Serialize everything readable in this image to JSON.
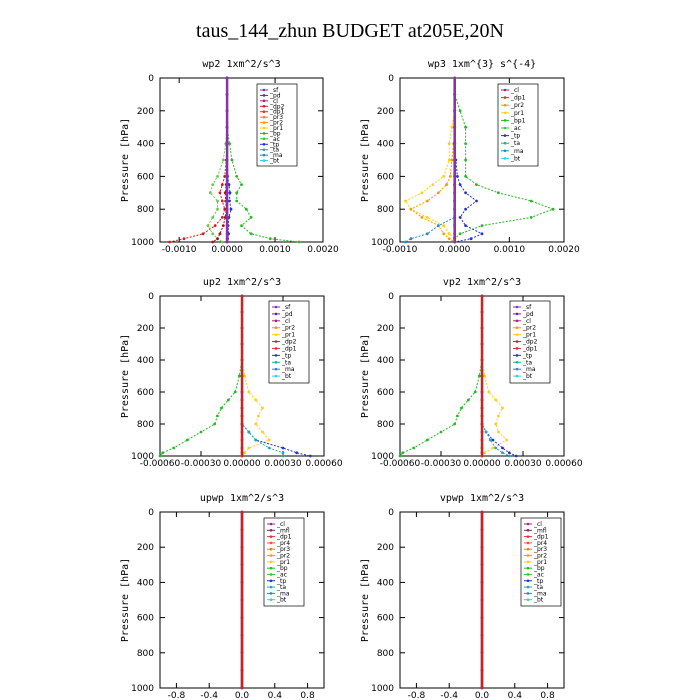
{
  "title": "taus_144_zhun  BUDGET at205E,20N",
  "chart_data": [
    {
      "type": "line",
      "title": "wp2  1xm^2/s^3",
      "ylabel": "Pressure [hPa]",
      "ylim": [
        1000,
        0
      ],
      "xlim": [
        -0.0014,
        0.002
      ],
      "xticks": [
        -0.001,
        0,
        0.001,
        0.002
      ],
      "xticklabels": [
        "-0.0010",
        "0.0000",
        "0.0010",
        "0.0020"
      ],
      "yticks": [
        0,
        200,
        400,
        600,
        800,
        1000
      ],
      "legend": [
        "_sf",
        "_pd",
        "_cl",
        "_dp2",
        "_dp1",
        "_pr3",
        "_pr2",
        "_pr1",
        "_bp",
        "_ac",
        "_tp",
        "_ta",
        "_ma",
        "_bt"
      ],
      "p": [
        0,
        100,
        200,
        300,
        400,
        500,
        600,
        650,
        700,
        750,
        800,
        850,
        900,
        950,
        980,
        1000
      ],
      "series": [
        {
          "name": "_ac",
          "color": "#22bb22",
          "values": [
            0,
            0,
            0,
            0,
            5e-05,
            0.0001,
            0.0002,
            0.0003,
            0.0002,
            0.0002,
            0.0004,
            0.0005,
            0.0003,
            0.0005,
            0.0009,
            0.0015
          ]
        },
        {
          "name": "_bp",
          "color": "#66cc44",
          "values": [
            0,
            0,
            0,
            0,
            -3e-05,
            -8e-05,
            -0.0002,
            -0.0003,
            -0.00035,
            -0.0002,
            -0.0002,
            -0.0003,
            -0.0004,
            -0.0003,
            -0.0002,
            -0.0001
          ]
        },
        {
          "name": "_dp1",
          "color": "#cc2222",
          "values": [
            0,
            0,
            0,
            0,
            0,
            -2e-05,
            -5e-05,
            -0.0001,
            -0.00015,
            -0.0001,
            -5e-05,
            -0.0001,
            -0.00025,
            -0.0005,
            -0.0009,
            -0.0012
          ]
        },
        {
          "name": "_dp2",
          "color": "#aa1111",
          "values": [
            0,
            0,
            0,
            0,
            0,
            0,
            -1e-05,
            -2e-05,
            -4e-05,
            -3e-05,
            -2e-05,
            -4e-05,
            -8e-05,
            -0.00015,
            -0.0002,
            -0.0003
          ]
        },
        {
          "name": "_tp",
          "color": "#2233cc",
          "values": [
            0,
            0,
            0,
            0,
            0,
            0,
            1e-05,
            4e-05,
            6e-05,
            5e-05,
            8e-05,
            4e-05,
            2e-05,
            3e-05,
            1e-05,
            0
          ]
        },
        {
          "name": "_sf",
          "color": "#8833aa",
          "values": [
            0,
            0,
            0,
            0,
            0,
            0,
            0,
            0,
            0,
            0,
            0,
            0,
            0,
            0,
            0,
            0
          ]
        }
      ]
    },
    {
      "type": "line",
      "title": "wp3  1xm^{3} s^{-4}",
      "ylabel": "Pressure [hPa]",
      "ylim": [
        1000,
        0
      ],
      "xlim": [
        -0.001,
        0.002
      ],
      "xticks": [
        -0.001,
        0,
        0.001,
        0.002
      ],
      "xticklabels": [
        "-0.0010",
        "0.0000",
        "0.0010",
        "0.0020"
      ],
      "yticks": [
        0,
        200,
        400,
        600,
        800,
        1000
      ],
      "legend": [
        "_cl",
        "_dp1",
        "_pr2",
        "_pr1",
        "_bp1",
        "_ac",
        "_tp",
        "_ta",
        "_ma",
        "_bt"
      ],
      "p": [
        0,
        100,
        200,
        300,
        400,
        500,
        600,
        650,
        700,
        750,
        800,
        850,
        900,
        950,
        980,
        1000
      ],
      "series": [
        {
          "name": "_ac",
          "color": "#22bb22",
          "values": [
            0,
            0,
            0.0001,
            0.0002,
            0.0002,
            0.0002,
            0.0002,
            0.0004,
            0.0008,
            0.0014,
            0.0018,
            0.0014,
            0.0005,
            0.0001,
            0,
            0
          ]
        },
        {
          "name": "_pr2",
          "color": "#ffcc22",
          "values": [
            0,
            0,
            0,
            -5e-05,
            -0.0001,
            -0.0001,
            -0.0002,
            -0.0004,
            -0.0006,
            -0.0009,
            -0.0008,
            -0.0005,
            -0.0002,
            -0.0001,
            0,
            0
          ]
        },
        {
          "name": "_pr1",
          "color": "#ff9900",
          "values": [
            0,
            0,
            0,
            0,
            -2e-05,
            -5e-05,
            -8e-05,
            -0.00015,
            -0.0003,
            -0.0005,
            -0.0008,
            -0.0006,
            -0.0003,
            -0.0002,
            -0.0001,
            0
          ]
        },
        {
          "name": "_bp1",
          "color": "#2233cc",
          "values": [
            0,
            0,
            0,
            0,
            0,
            2e-05,
            5e-05,
            0.0001,
            0.0002,
            0.0004,
            0.0002,
            0.0001,
            0.0002,
            0.0005,
            0.0003,
            0
          ]
        },
        {
          "name": "_tp",
          "color": "#2288cc",
          "values": [
            0,
            0,
            0,
            0,
            0,
            0,
            0,
            0,
            0,
            0,
            0,
            0,
            -0.0003,
            -0.0005,
            -0.0008,
            -0.0009
          ]
        },
        {
          "name": "_dp1",
          "color": "#cc2222",
          "values": [
            0,
            0,
            0,
            0,
            0,
            0,
            0,
            0,
            0,
            0,
            0,
            0,
            0,
            0,
            0,
            0
          ]
        },
        {
          "name": "_cl",
          "color": "#8833aa",
          "values": [
            0,
            0,
            0,
            0,
            0,
            0,
            0,
            0,
            0,
            0,
            0,
            0,
            0,
            0,
            0,
            0
          ]
        }
      ]
    },
    {
      "type": "line",
      "title": "up2  1xm^2/s^3",
      "ylabel": "Pressure [hPa]",
      "ylim": [
        1000,
        0
      ],
      "xlim": [
        -0.0006,
        0.0006
      ],
      "xticks": [
        -0.0006,
        -0.0003,
        0,
        0.0003,
        0.0006
      ],
      "xticklabels": [
        "-0.00060",
        "-0.00030",
        "0.00000",
        "0.00030",
        "0.00060"
      ],
      "yticks": [
        0,
        200,
        400,
        600,
        800,
        1000
      ],
      "legend": [
        "_sf",
        "_pd",
        "_cl",
        "_pr2",
        "_pr1",
        "_dp2",
        "_dp1",
        "_tp",
        "_ta",
        "_ma",
        "_bt"
      ],
      "p": [
        0,
        100,
        200,
        300,
        400,
        500,
        600,
        650,
        700,
        750,
        800,
        850,
        900,
        950,
        980,
        1000
      ],
      "series": [
        {
          "name": "_dp2",
          "color": "#22bb22",
          "values": [
            0,
            0,
            0,
            0,
            0,
            -2e-05,
            -5e-05,
            -0.0001,
            -0.00015,
            -0.00018,
            -0.0002,
            -0.0003,
            -0.0004,
            -0.0005,
            -0.00058,
            -0.0006
          ]
        },
        {
          "name": "_pr1",
          "color": "#ffcc22",
          "values": [
            0,
            0,
            0,
            0,
            0,
            2e-05,
            5e-05,
            0.0001,
            0.00015,
            0.00012,
            0.0001,
            0.00015,
            0.0002,
            5e-05,
            2e-05,
            0
          ]
        },
        {
          "name": "_tp",
          "color": "#2233cc",
          "values": [
            0,
            0,
            0,
            0,
            0,
            0,
            0,
            0,
            0,
            0,
            0,
            5e-05,
            0.0001,
            0.0003,
            0.0004,
            0.0005
          ]
        },
        {
          "name": "_ta",
          "color": "#22aaaa",
          "values": [
            0,
            0,
            0,
            0,
            0,
            0,
            0,
            0,
            0,
            0,
            0,
            5e-05,
            0.0001,
            0.0002,
            0.0003,
            0.0003
          ]
        },
        {
          "name": "_sf",
          "color": "#cc2222",
          "values": [
            0,
            0,
            0,
            0,
            0,
            0,
            0,
            0,
            0,
            0,
            0,
            0,
            0,
            0,
            0,
            0
          ]
        }
      ]
    },
    {
      "type": "line",
      "title": "vp2  1xm^2/s^3",
      "ylabel": "Pressure [hPa]",
      "ylim": [
        1000,
        0
      ],
      "xlim": [
        -0.0006,
        0.0006
      ],
      "xticks": [
        -0.0006,
        -0.0003,
        0,
        0.0003,
        0.0006
      ],
      "xticklabels": [
        "-0.00060",
        "-0.00030",
        "0.00000",
        "0.00030",
        "0.00060"
      ],
      "yticks": [
        0,
        200,
        400,
        600,
        800,
        1000
      ],
      "legend": [
        "_sf",
        "_pd",
        "_cl",
        "_pr2",
        "_pr1",
        "_dp2",
        "_dp1",
        "_tp",
        "_ta",
        "_ma",
        "_bt"
      ],
      "p": [
        0,
        100,
        200,
        300,
        400,
        500,
        600,
        650,
        700,
        750,
        800,
        850,
        900,
        950,
        980,
        1000
      ],
      "series": [
        {
          "name": "_dp2",
          "color": "#22bb22",
          "values": [
            0,
            0,
            0,
            0,
            0,
            -2e-05,
            -5e-05,
            -0.0001,
            -0.00015,
            -0.00018,
            -0.0002,
            -0.0003,
            -0.0004,
            -0.0005,
            -0.00058,
            -0.0006
          ]
        },
        {
          "name": "_pr1",
          "color": "#ffcc22",
          "values": [
            0,
            0,
            0,
            0,
            0,
            2e-05,
            5e-05,
            0.0001,
            0.00015,
            0.00012,
            0.0001,
            0.00012,
            0.00018,
            8e-05,
            2e-05,
            0
          ]
        },
        {
          "name": "_tp",
          "color": "#2233cc",
          "values": [
            0,
            0,
            0,
            0,
            0,
            0,
            0,
            0,
            0,
            0,
            0,
            3e-05,
            8e-05,
            0.00015,
            0.0002,
            0.00025
          ]
        },
        {
          "name": "_ta",
          "color": "#22aaaa",
          "values": [
            0,
            0,
            0,
            0,
            0,
            0,
            0,
            0,
            0,
            0,
            0,
            3e-05,
            6e-05,
            0.0001,
            0.00015,
            0.0002
          ]
        },
        {
          "name": "_sf",
          "color": "#cc2222",
          "values": [
            0,
            0,
            0,
            0,
            0,
            0,
            0,
            0,
            0,
            0,
            0,
            0,
            0,
            0,
            0,
            0
          ]
        }
      ]
    },
    {
      "type": "line",
      "title": "upwp  1xm^2/s^3",
      "ylabel": "Pressure [hPa]",
      "ylim": [
        1000,
        0
      ],
      "xlim": [
        -1.0,
        1.0
      ],
      "xticks": [
        -0.8,
        -0.4,
        0.0,
        0.4,
        0.8
      ],
      "xticklabels": [
        "-0.8",
        "-0.4",
        "0.0",
        "0.4",
        "0.8"
      ],
      "yticks": [
        0,
        200,
        400,
        600,
        800,
        1000
      ],
      "legend": [
        "_cl",
        "_mfl",
        "_dp1",
        "_pr4",
        "_pr3",
        "_pr2",
        "_pr1",
        "_bp",
        "_ac",
        "_tp",
        "_ta",
        "_ma",
        "_bt"
      ],
      "p": [
        0,
        100,
        200,
        300,
        400,
        500,
        600,
        700,
        800,
        900,
        1000
      ],
      "series": [
        {
          "name": "_cl",
          "color": "#8833aa",
          "values": [
            0,
            0,
            0,
            0,
            0,
            0,
            0,
            0,
            0,
            0,
            0
          ]
        },
        {
          "name": "_dp1",
          "color": "#cc2222",
          "values": [
            0,
            0,
            0,
            0,
            0,
            0,
            0,
            0,
            0,
            0,
            0
          ]
        }
      ]
    },
    {
      "type": "line",
      "title": "vpwp  1xm^2/s^3",
      "ylabel": "Pressure [hPa]",
      "ylim": [
        1000,
        0
      ],
      "xlim": [
        -1.0,
        1.0
      ],
      "xticks": [
        -0.8,
        -0.4,
        0.0,
        0.4,
        0.8
      ],
      "xticklabels": [
        "-0.8",
        "-0.4",
        "0.0",
        "0.4",
        "0.8"
      ],
      "yticks": [
        0,
        200,
        400,
        600,
        800,
        1000
      ],
      "legend": [
        "_cl",
        "_mfl",
        "_dp1",
        "_pr4",
        "_pr3",
        "_pr2",
        "_pr1",
        "_bp",
        "_ac",
        "_tp",
        "_ta",
        "_ma",
        "_bt"
      ],
      "p": [
        0,
        100,
        200,
        300,
        400,
        500,
        600,
        700,
        800,
        900,
        1000
      ],
      "series": [
        {
          "name": "_cl",
          "color": "#8833aa",
          "values": [
            0,
            0,
            0,
            0,
            0,
            0,
            0,
            0,
            0,
            0,
            0
          ]
        },
        {
          "name": "_dp1",
          "color": "#cc2222",
          "values": [
            0,
            0,
            0,
            0,
            0,
            0,
            0,
            0,
            0,
            0,
            0
          ]
        }
      ]
    }
  ],
  "legend_colors": {
    "_sf": "#8833aa",
    "_pd": "#6622aa",
    "_cl": "#aa2288",
    "_mfl": "#882266",
    "_dp2": "#cc2222",
    "_dp1": "#dd3333",
    "_pr4": "#ee5533",
    "_pr3": "#ff7722",
    "_pr2": "#ff9900",
    "_pr1": "#ffcc22",
    "_bp": "#22bb22",
    "_bp1": "#22bb22",
    "_ac": "#33cc33",
    "_tp": "#2233cc",
    "_ta": "#22aaaa",
    "_ma": "#2288cc",
    "_bt": "#33ccee"
  }
}
